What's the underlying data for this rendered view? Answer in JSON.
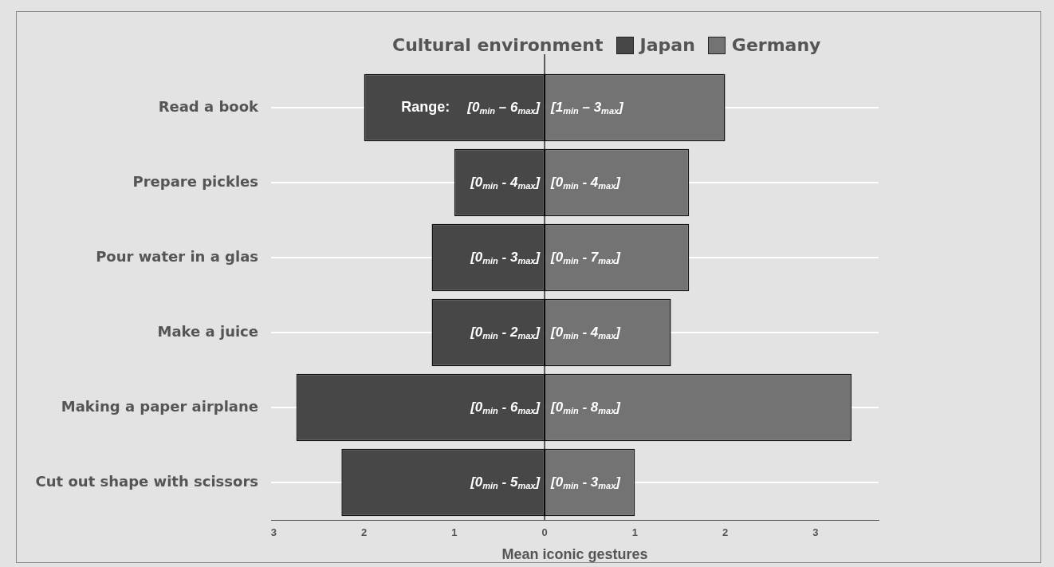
{
  "chart_data": {
    "type": "bar",
    "orientation": "horizontal",
    "stacked": true,
    "categories": [
      "Read a book",
      "Prepare pickles",
      "Pour water in a glas",
      "Make a juice",
      "Making a paper airplane",
      "Cut out shape with scissors"
    ],
    "series": [
      {
        "name": "Japan",
        "color": "#474747",
        "values": [
          -2.0,
          -1.0,
          -1.25,
          -1.25,
          -2.75,
          -2.25
        ],
        "value_labels": [
          "[0$_{min}$ – 6$_{max}$]",
          "[0$_{min}$ - 4$_{max}$]",
          "[0$_{min}$ - 3$_{max}$]",
          "[0$_{min}$ - 2$_{max}$]",
          "[0$_{min}$ - 6$_{max}$]",
          "[0$_{min}$ - 5$_{max}$]"
        ]
      },
      {
        "name": "Germany",
        "color": "#737373",
        "values": [
          2.0,
          1.6,
          1.6,
          1.4,
          3.4,
          1.0
        ],
        "value_labels": [
          "[1$_{min}$ – 3$_{max}$]",
          "[0$_{min}$ - 4$_{max}$]",
          "[0$_{min}$ - 7$_{max}$]",
          "[0$_{min}$ - 4$_{max}$]",
          "[0$_{min}$ - 8$_{max}$]",
          "[0$_{min}$ - 3$_{max}$]"
        ]
      }
    ],
    "xlabel": "Mean iconic gestures",
    "legend_title": "Cultural environment",
    "legend": "top",
    "annotations": [
      "Range:"
    ],
    "xlim": [
      -3.03,
      3.7
    ],
    "xticks": [
      {
        "value": -3,
        "label": "3"
      },
      {
        "value": -2,
        "label": "2"
      },
      {
        "value": -1,
        "label": "1"
      },
      0,
      1,
      2,
      3
    ],
    "ref_lines": [
      {
        "axis": "x",
        "value": 0,
        "color": "#000000"
      }
    ],
    "grid": "y"
  }
}
